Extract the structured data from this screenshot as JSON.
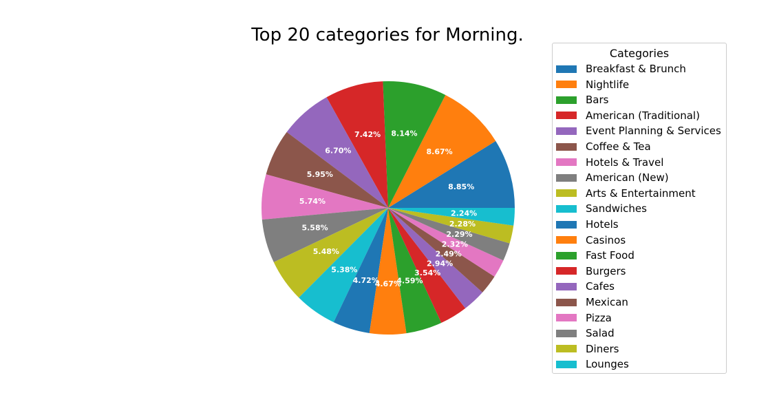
{
  "chart_data": {
    "type": "pie",
    "title": "Top 20 categories for Morning.",
    "legend_title": "Categories",
    "legend_position": "right",
    "slices": [
      {
        "label": "Breakfast & Brunch",
        "value": 8.85,
        "value_label": "8.85%",
        "color": "#1f77b4"
      },
      {
        "label": "Nightlife",
        "value": 8.67,
        "value_label": "8.67%",
        "color": "#ff7f0e"
      },
      {
        "label": "Bars",
        "value": 8.14,
        "value_label": "8.14%",
        "color": "#2ca02c"
      },
      {
        "label": "American (Traditional)",
        "value": 7.42,
        "value_label": "7.42%",
        "color": "#d62728"
      },
      {
        "label": "Event Planning & Services",
        "value": 6.7,
        "value_label": "6.70%",
        "color": "#9467bd"
      },
      {
        "label": "Coffee & Tea",
        "value": 5.95,
        "value_label": "5.95%",
        "color": "#8c564b"
      },
      {
        "label": "Hotels & Travel",
        "value": 5.74,
        "value_label": "5.74%",
        "color": "#e377c2"
      },
      {
        "label": "American (New)",
        "value": 5.58,
        "value_label": "5.58%",
        "color": "#7f7f7f"
      },
      {
        "label": "Arts & Entertainment",
        "value": 5.48,
        "value_label": "5.48%",
        "color": "#bcbd22"
      },
      {
        "label": "Sandwiches",
        "value": 5.38,
        "value_label": "5.38%",
        "color": "#17becf"
      },
      {
        "label": "Hotels",
        "value": 4.72,
        "value_label": "4.72%",
        "color": "#1f77b4"
      },
      {
        "label": "Casinos",
        "value": 4.67,
        "value_label": "4.67%",
        "color": "#ff7f0e"
      },
      {
        "label": "Fast Food",
        "value": 4.59,
        "value_label": "4.59%",
        "color": "#2ca02c"
      },
      {
        "label": "Burgers",
        "value": 3.54,
        "value_label": "3.54%",
        "color": "#d62728"
      },
      {
        "label": "Cafes",
        "value": 2.94,
        "value_label": "2.94%",
        "color": "#9467bd"
      },
      {
        "label": "Mexican",
        "value": 2.49,
        "value_label": "2.49%",
        "color": "#8c564b"
      },
      {
        "label": "Pizza",
        "value": 2.32,
        "value_label": "2.32%",
        "color": "#e377c2"
      },
      {
        "label": "Salad",
        "value": 2.29,
        "value_label": "2.29%",
        "color": "#7f7f7f"
      },
      {
        "label": "Diners",
        "value": 2.28,
        "value_label": "2.28%",
        "color": "#bcbd22"
      },
      {
        "label": "Lounges",
        "value": 2.24,
        "value_label": "2.24%",
        "color": "#17becf"
      }
    ]
  }
}
